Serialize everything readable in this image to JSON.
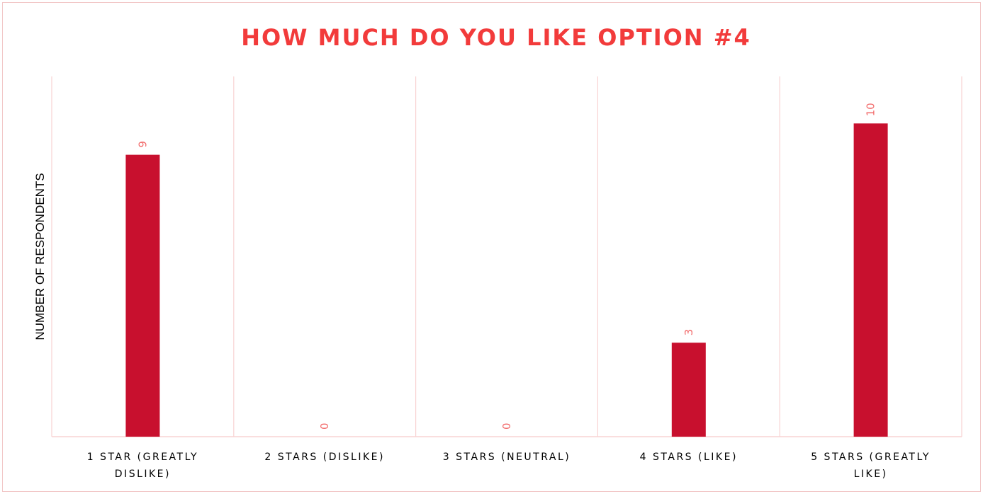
{
  "chart_data": {
    "type": "bar",
    "title": "HOW MUCH DO YOU LIKE OPTION #4",
    "xlabel": "",
    "ylabel": "NUMBER OF RESPONDENTS",
    "categories": [
      [
        "1 STAR (GREATLY",
        "DISLIKE)"
      ],
      [
        "2 STARS (DISLIKE)"
      ],
      [
        "3 STARS (NEUTRAL)"
      ],
      [
        "4 STARS (LIKE)"
      ],
      [
        "5 STARS (GREATLY",
        "LIKE)"
      ]
    ],
    "values": [
      9,
      0,
      0,
      3,
      10
    ],
    "data_labels": [
      "9",
      "0",
      "0",
      "3",
      "10"
    ],
    "ylim": [
      0,
      11.5
    ],
    "grid": "vertical category separators",
    "legend": "none",
    "colors": {
      "bar": "#c8102e",
      "title": "#f23b3b",
      "data_label": "#f26b6b",
      "grid": "#f8d3d3",
      "axis_text": "#000000"
    }
  }
}
